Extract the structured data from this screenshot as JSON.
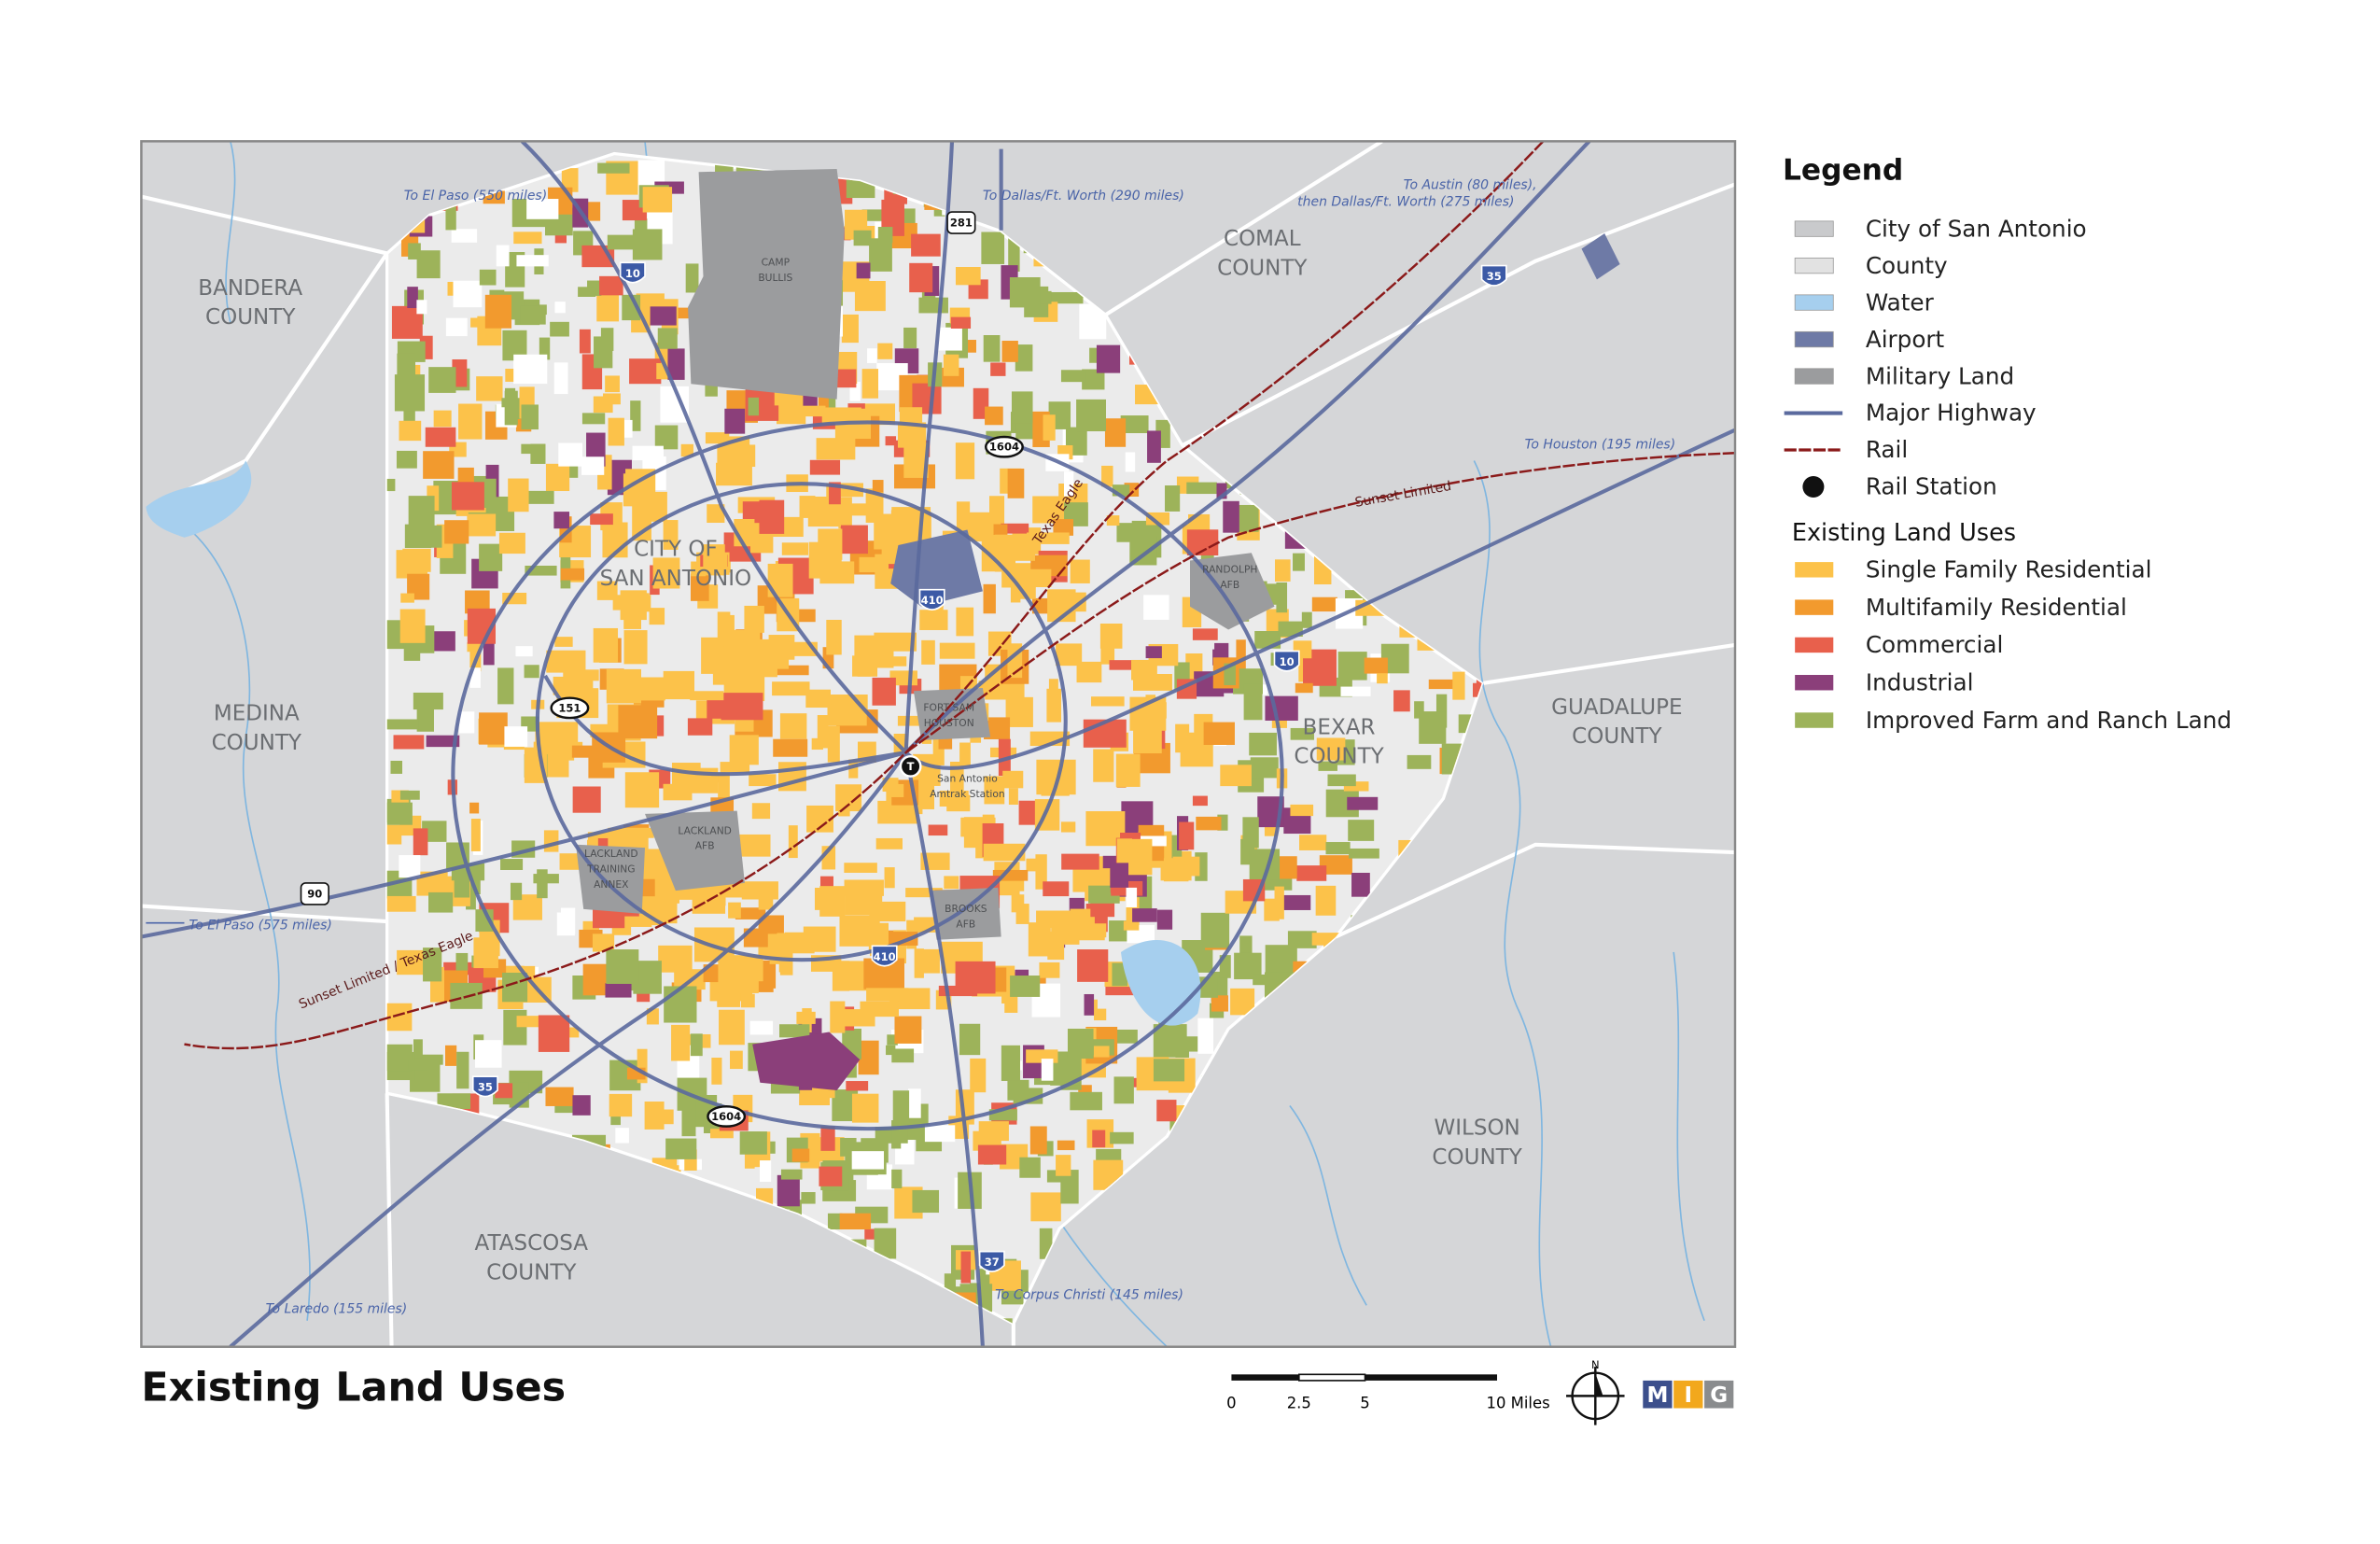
{
  "title": "Existing Land Uses",
  "legend": {
    "title": "Legend",
    "items": [
      "City of San Antonio",
      "County",
      "Water",
      "Airport",
      "Military Land",
      "Major Highway",
      "Rail",
      "Rail Station"
    ],
    "land_uses_title": "Existing Land Uses",
    "land_uses": [
      "Single Family Residential",
      "Multifamily Residential",
      "Commercial",
      "Industrial",
      "Improved Farm and Ranch Land"
    ]
  },
  "counties": [
    [
      "BANDERA",
      "COUNTY"
    ],
    [
      "COMAL",
      "COUNTY"
    ],
    [
      "MEDINA",
      "COUNTY"
    ],
    [
      "GUADALUPE",
      "COUNTY"
    ],
    [
      "WILSON",
      "COUNTY"
    ],
    [
      "ATASCOSA",
      "COUNTY"
    ],
    [
      "BEXAR",
      "COUNTY"
    ]
  ],
  "places": {
    "city": [
      "CITY OF",
      "SAN ANTONIO"
    ],
    "camp_bullis": [
      "CAMP",
      "BULLIS"
    ],
    "randolph": [
      "RANDOLPH",
      "AFB"
    ],
    "fort_sam": [
      "FORT SAM",
      "HOUSTON"
    ],
    "station": [
      "San Antonio",
      "Amtrak Station"
    ],
    "lackland": [
      "LACKLAND",
      "AFB"
    ],
    "annex": [
      "LACKLAND",
      "TRAINING",
      "ANNEX"
    ],
    "brooks": [
      "BROOKS",
      "AFB"
    ],
    "station_symbol": "T"
  },
  "shields": [
    "10",
    "281",
    "35",
    "1604",
    "410",
    "10",
    "151",
    "90",
    "410",
    "35",
    "1604",
    "37"
  ],
  "routes": [
    "To El Paso (550 miles)",
    "To Dallas/Ft. Worth (290 miles)",
    "To Austin (80 miles),",
    "then Dallas/Ft. Worth (275 miles)",
    "To Houston (195 miles)",
    "To El Paso (575 miles)",
    "To Laredo (155 miles)",
    "To Corpus Christi (145 miles)"
  ],
  "rail_lines": [
    "Texas Eagle",
    "Sunset Limited",
    "Sunset Limited / Texas Eagle"
  ],
  "scale_bar": [
    "0",
    "2.5",
    "5",
    "10 Miles"
  ],
  "north": "N",
  "logo": [
    "M",
    "I",
    "G"
  ]
}
